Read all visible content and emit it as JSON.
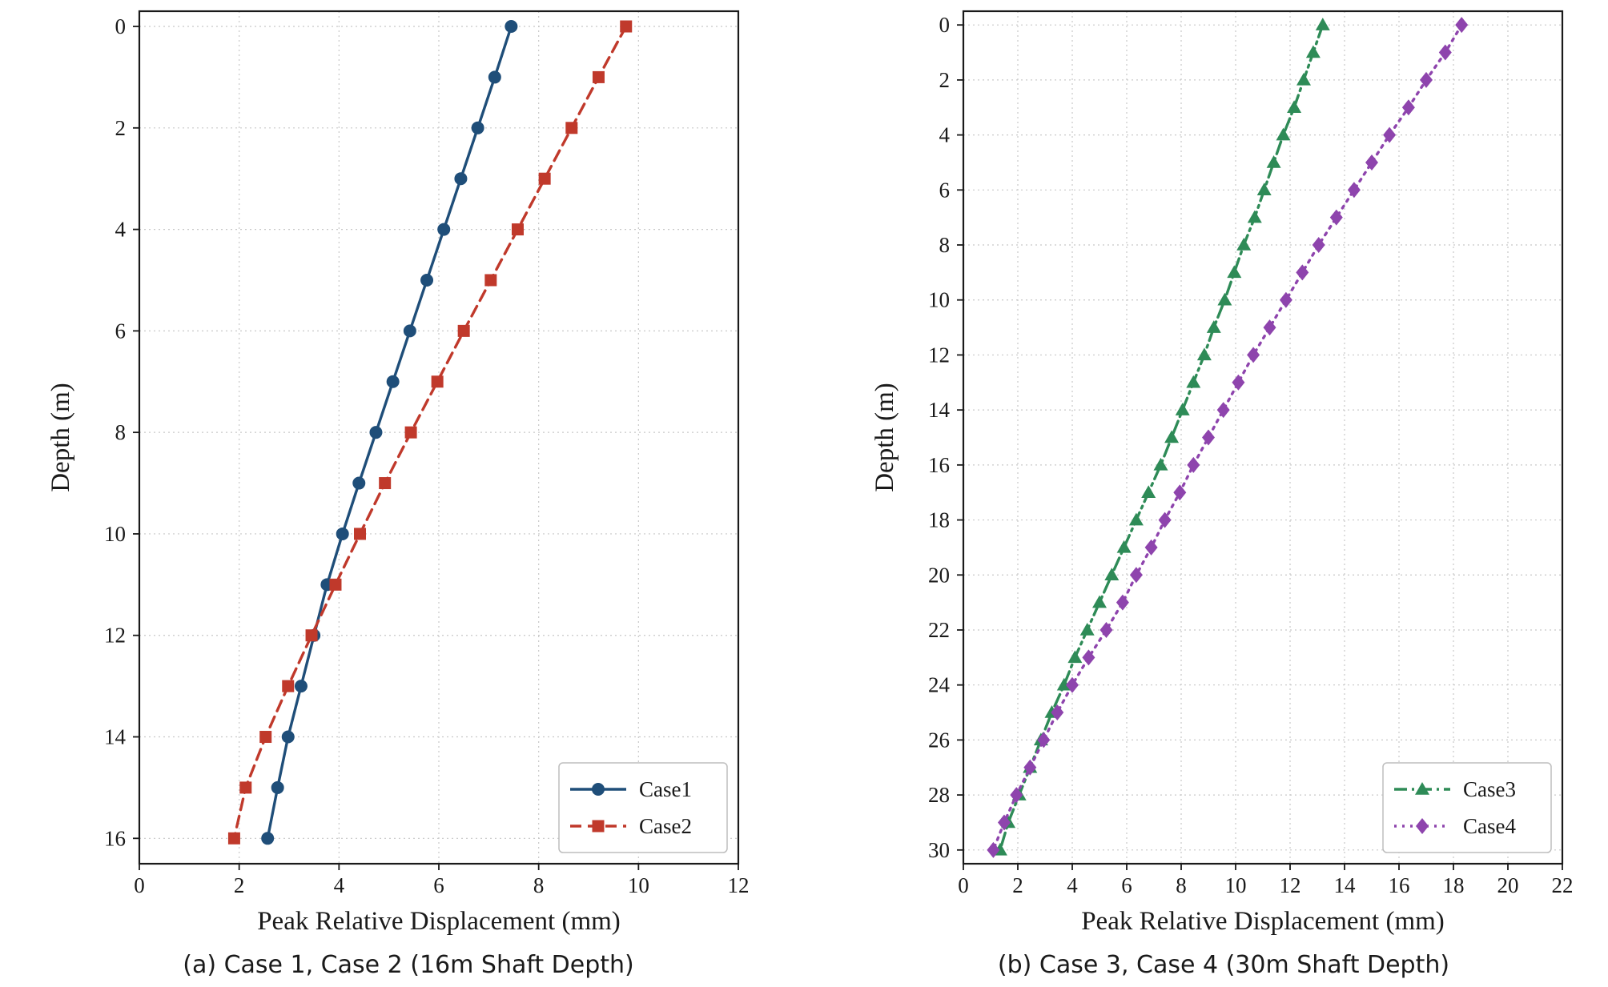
{
  "chart_data": [
    {
      "type": "line",
      "xlabel": "Peak Relative Displacement (mm)",
      "ylabel": "Depth (m)",
      "xlim": [
        0,
        12
      ],
      "ylim": [
        16.5,
        -0.3
      ],
      "y_inverted": true,
      "grid": true,
      "grid_style": "dotted",
      "legend_position": "bottom-right",
      "x_ticks": [
        0,
        2,
        4,
        6,
        8,
        10,
        12
      ],
      "y_ticks": [
        0,
        2,
        4,
        6,
        8,
        10,
        12,
        14,
        16
      ],
      "caption": "(a) Case 1, Case 2 (16m Shaft Depth)",
      "series": [
        {
          "name": "Case1",
          "color": "#1f4e79",
          "line_style": "solid",
          "marker": "circle",
          "points": [
            {
              "x": 7.45,
              "y": 0
            },
            {
              "x": 7.12,
              "y": 1
            },
            {
              "x": 6.78,
              "y": 2
            },
            {
              "x": 6.44,
              "y": 3
            },
            {
              "x": 6.1,
              "y": 4
            },
            {
              "x": 5.76,
              "y": 5
            },
            {
              "x": 5.42,
              "y": 6
            },
            {
              "x": 5.08,
              "y": 7
            },
            {
              "x": 4.74,
              "y": 8
            },
            {
              "x": 4.4,
              "y": 9
            },
            {
              "x": 4.07,
              "y": 10
            },
            {
              "x": 3.76,
              "y": 11
            },
            {
              "x": 3.5,
              "y": 12
            },
            {
              "x": 3.24,
              "y": 13
            },
            {
              "x": 2.98,
              "y": 14
            },
            {
              "x": 2.77,
              "y": 15
            },
            {
              "x": 2.57,
              "y": 16
            }
          ]
        },
        {
          "name": "Case2",
          "color": "#c0392b",
          "line_style": "dashed",
          "marker": "square",
          "points": [
            {
              "x": 9.75,
              "y": 0
            },
            {
              "x": 9.2,
              "y": 1
            },
            {
              "x": 8.66,
              "y": 2
            },
            {
              "x": 8.12,
              "y": 3
            },
            {
              "x": 7.58,
              "y": 4
            },
            {
              "x": 7.04,
              "y": 5
            },
            {
              "x": 6.5,
              "y": 6
            },
            {
              "x": 5.97,
              "y": 7
            },
            {
              "x": 5.44,
              "y": 8
            },
            {
              "x": 4.92,
              "y": 9
            },
            {
              "x": 4.42,
              "y": 10
            },
            {
              "x": 3.93,
              "y": 11
            },
            {
              "x": 3.45,
              "y": 12
            },
            {
              "x": 2.98,
              "y": 13
            },
            {
              "x": 2.53,
              "y": 14
            },
            {
              "x": 2.13,
              "y": 15
            },
            {
              "x": 1.9,
              "y": 16
            }
          ]
        }
      ]
    },
    {
      "type": "line",
      "xlabel": "Peak Relative Displacement (mm)",
      "ylabel": "Depth (m)",
      "xlim": [
        0,
        22
      ],
      "ylim": [
        30.5,
        -0.5
      ],
      "y_inverted": true,
      "grid": true,
      "grid_style": "dotted",
      "legend_position": "bottom-right",
      "x_ticks": [
        0,
        2,
        4,
        6,
        8,
        10,
        12,
        14,
        16,
        18,
        20,
        22
      ],
      "y_ticks": [
        0,
        2,
        4,
        6,
        8,
        10,
        12,
        14,
        16,
        18,
        20,
        22,
        24,
        26,
        28,
        30
      ],
      "caption": "(b) Case 3, Case 4 (30m Shaft Depth)",
      "series": [
        {
          "name": "Case3",
          "color": "#2e8b57",
          "line_style": "dash-dot",
          "marker": "triangle",
          "points": [
            {
              "x": 13.2,
              "y": 0
            },
            {
              "x": 12.85,
              "y": 1
            },
            {
              "x": 12.5,
              "y": 2
            },
            {
              "x": 12.15,
              "y": 3
            },
            {
              "x": 11.75,
              "y": 4
            },
            {
              "x": 11.4,
              "y": 5
            },
            {
              "x": 11.05,
              "y": 6
            },
            {
              "x": 10.7,
              "y": 7
            },
            {
              "x": 10.3,
              "y": 8
            },
            {
              "x": 9.95,
              "y": 9
            },
            {
              "x": 9.6,
              "y": 10
            },
            {
              "x": 9.2,
              "y": 11
            },
            {
              "x": 8.85,
              "y": 12
            },
            {
              "x": 8.45,
              "y": 13
            },
            {
              "x": 8.05,
              "y": 14
            },
            {
              "x": 7.65,
              "y": 15
            },
            {
              "x": 7.25,
              "y": 16
            },
            {
              "x": 6.8,
              "y": 17
            },
            {
              "x": 6.35,
              "y": 18
            },
            {
              "x": 5.9,
              "y": 19
            },
            {
              "x": 5.45,
              "y": 20
            },
            {
              "x": 5.0,
              "y": 21
            },
            {
              "x": 4.55,
              "y": 22
            },
            {
              "x": 4.1,
              "y": 23
            },
            {
              "x": 3.7,
              "y": 24
            },
            {
              "x": 3.25,
              "y": 25
            },
            {
              "x": 2.85,
              "y": 26
            },
            {
              "x": 2.45,
              "y": 27
            },
            {
              "x": 2.05,
              "y": 28
            },
            {
              "x": 1.65,
              "y": 29
            },
            {
              "x": 1.35,
              "y": 30
            }
          ]
        },
        {
          "name": "Case4",
          "color": "#8e44ad",
          "line_style": "dotted",
          "marker": "diamond",
          "points": [
            {
              "x": 18.3,
              "y": 0
            },
            {
              "x": 17.7,
              "y": 1
            },
            {
              "x": 17.0,
              "y": 2
            },
            {
              "x": 16.35,
              "y": 3
            },
            {
              "x": 15.65,
              "y": 4
            },
            {
              "x": 15.0,
              "y": 5
            },
            {
              "x": 14.35,
              "y": 6
            },
            {
              "x": 13.7,
              "y": 7
            },
            {
              "x": 13.05,
              "y": 8
            },
            {
              "x": 12.45,
              "y": 9
            },
            {
              "x": 11.85,
              "y": 10
            },
            {
              "x": 11.25,
              "y": 11
            },
            {
              "x": 10.65,
              "y": 12
            },
            {
              "x": 10.1,
              "y": 13
            },
            {
              "x": 9.55,
              "y": 14
            },
            {
              "x": 9.0,
              "y": 15
            },
            {
              "x": 8.45,
              "y": 16
            },
            {
              "x": 7.95,
              "y": 17
            },
            {
              "x": 7.4,
              "y": 18
            },
            {
              "x": 6.9,
              "y": 19
            },
            {
              "x": 6.35,
              "y": 20
            },
            {
              "x": 5.85,
              "y": 21
            },
            {
              "x": 5.25,
              "y": 22
            },
            {
              "x": 4.6,
              "y": 23
            },
            {
              "x": 4.0,
              "y": 24
            },
            {
              "x": 3.45,
              "y": 25
            },
            {
              "x": 2.95,
              "y": 26
            },
            {
              "x": 2.45,
              "y": 27
            },
            {
              "x": 1.95,
              "y": 28
            },
            {
              "x": 1.5,
              "y": 29
            },
            {
              "x": 1.1,
              "y": 30
            }
          ]
        }
      ]
    }
  ]
}
